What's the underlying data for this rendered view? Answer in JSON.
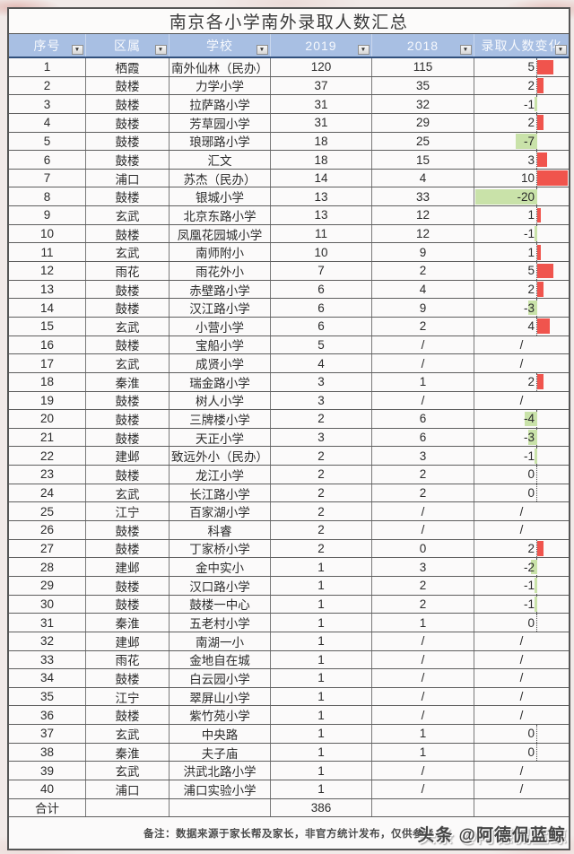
{
  "page": {
    "title": "南京各小学南外录取人数汇总",
    "note": "备注：数据来源于家长帮及家长，非官方统计发布，仅供参考",
    "watermark": "头条 @阿德侃蓝鲸"
  },
  "icons": {
    "filter_dropdown": "▼"
  },
  "colors": {
    "header_bg": "#a8bfe3",
    "header_text": "#f7f9fd",
    "positive_bar": "#f0544d",
    "negative_fill": "#c9e2a9"
  },
  "table": {
    "columns": [
      {
        "key": "no",
        "label": "序号"
      },
      {
        "key": "district",
        "label": "区属"
      },
      {
        "key": "school",
        "label": "学校"
      },
      {
        "key": "y2019",
        "label": "2019"
      },
      {
        "key": "y2018",
        "label": "2018"
      },
      {
        "key": "change",
        "label": "录取人数变化"
      }
    ],
    "rows": [
      {
        "no": "1",
        "district": "栖霞",
        "school": "南外仙林（民办）",
        "y2019": "120",
        "y2018": "115",
        "change": "5"
      },
      {
        "no": "2",
        "district": "鼓楼",
        "school": "力学小学",
        "y2019": "37",
        "y2018": "35",
        "change": "2"
      },
      {
        "no": "3",
        "district": "鼓楼",
        "school": "拉萨路小学",
        "y2019": "31",
        "y2018": "32",
        "change": "-1"
      },
      {
        "no": "4",
        "district": "鼓楼",
        "school": "芳草园小学",
        "y2019": "31",
        "y2018": "29",
        "change": "2"
      },
      {
        "no": "5",
        "district": "鼓楼",
        "school": "琅琊路小学",
        "y2019": "18",
        "y2018": "25",
        "change": "-7"
      },
      {
        "no": "6",
        "district": "鼓楼",
        "school": "汇文",
        "y2019": "18",
        "y2018": "15",
        "change": "3"
      },
      {
        "no": "7",
        "district": "浦口",
        "school": "苏杰（民办）",
        "y2019": "14",
        "y2018": "4",
        "change": "10"
      },
      {
        "no": "8",
        "district": "鼓楼",
        "school": "银城小学",
        "y2019": "13",
        "y2018": "33",
        "change": "-20"
      },
      {
        "no": "9",
        "district": "玄武",
        "school": "北京东路小学",
        "y2019": "13",
        "y2018": "12",
        "change": "1"
      },
      {
        "no": "10",
        "district": "鼓楼",
        "school": "凤凰花园城小学",
        "y2019": "11",
        "y2018": "12",
        "change": "-1"
      },
      {
        "no": "11",
        "district": "玄武",
        "school": "南师附小",
        "y2019": "10",
        "y2018": "9",
        "change": "1"
      },
      {
        "no": "12",
        "district": "雨花",
        "school": "雨花外小",
        "y2019": "7",
        "y2018": "2",
        "change": "5"
      },
      {
        "no": "13",
        "district": "鼓楼",
        "school": "赤壁路小学",
        "y2019": "6",
        "y2018": "4",
        "change": "2"
      },
      {
        "no": "14",
        "district": "鼓楼",
        "school": "汉江路小学",
        "y2019": "6",
        "y2018": "9",
        "change": "-3"
      },
      {
        "no": "15",
        "district": "玄武",
        "school": "小营小学",
        "y2019": "6",
        "y2018": "2",
        "change": "4"
      },
      {
        "no": "16",
        "district": "鼓楼",
        "school": "宝船小学",
        "y2019": "5",
        "y2018": "/",
        "change": "/"
      },
      {
        "no": "17",
        "district": "玄武",
        "school": "成贤小学",
        "y2019": "4",
        "y2018": "/",
        "change": "/"
      },
      {
        "no": "18",
        "district": "秦淮",
        "school": "瑞金路小学",
        "y2019": "3",
        "y2018": "1",
        "change": "2"
      },
      {
        "no": "19",
        "district": "鼓楼",
        "school": "树人小学",
        "y2019": "3",
        "y2018": "/",
        "change": "/"
      },
      {
        "no": "20",
        "district": "鼓楼",
        "school": "三牌楼小学",
        "y2019": "2",
        "y2018": "6",
        "change": "-4"
      },
      {
        "no": "21",
        "district": "鼓楼",
        "school": "天正小学",
        "y2019": "3",
        "y2018": "6",
        "change": "-3"
      },
      {
        "no": "22",
        "district": "建邺",
        "school": "致远外小（民办）",
        "y2019": "2",
        "y2018": "3",
        "change": "-1"
      },
      {
        "no": "23",
        "district": "鼓楼",
        "school": "龙江小学",
        "y2019": "2",
        "y2018": "2",
        "change": "0"
      },
      {
        "no": "24",
        "district": "玄武",
        "school": "长江路小学",
        "y2019": "2",
        "y2018": "2",
        "change": "0"
      },
      {
        "no": "25",
        "district": "江宁",
        "school": "百家湖小学",
        "y2019": "2",
        "y2018": "/",
        "change": "/"
      },
      {
        "no": "26",
        "district": "鼓楼",
        "school": "科睿",
        "y2019": "2",
        "y2018": "/",
        "change": "/"
      },
      {
        "no": "27",
        "district": "鼓楼",
        "school": "丁家桥小学",
        "y2019": "2",
        "y2018": "0",
        "change": "2"
      },
      {
        "no": "28",
        "district": "建邺",
        "school": "金中实小",
        "y2019": "1",
        "y2018": "3",
        "change": "-2"
      },
      {
        "no": "29",
        "district": "鼓楼",
        "school": "汉口路小学",
        "y2019": "1",
        "y2018": "2",
        "change": "-1"
      },
      {
        "no": "30",
        "district": "鼓楼",
        "school": "鼓楼一中心",
        "y2019": "1",
        "y2018": "2",
        "change": "-1"
      },
      {
        "no": "31",
        "district": "秦淮",
        "school": "五老村小学",
        "y2019": "1",
        "y2018": "1",
        "change": "0"
      },
      {
        "no": "32",
        "district": "建邺",
        "school": "南湖一小",
        "y2019": "1",
        "y2018": "/",
        "change": "/"
      },
      {
        "no": "33",
        "district": "雨花",
        "school": "金地自在城",
        "y2019": "1",
        "y2018": "/",
        "change": "/"
      },
      {
        "no": "34",
        "district": "鼓楼",
        "school": "白云园小学",
        "y2019": "1",
        "y2018": "/",
        "change": "/"
      },
      {
        "no": "35",
        "district": "江宁",
        "school": "翠屏山小学",
        "y2019": "1",
        "y2018": "/",
        "change": "/"
      },
      {
        "no": "36",
        "district": "鼓楼",
        "school": "紫竹苑小学",
        "y2019": "1",
        "y2018": "/",
        "change": "/"
      },
      {
        "no": "37",
        "district": "玄武",
        "school": "中央路",
        "y2019": "1",
        "y2018": "1",
        "change": "0"
      },
      {
        "no": "38",
        "district": "秦淮",
        "school": "夫子庙",
        "y2019": "1",
        "y2018": "1",
        "change": "0"
      },
      {
        "no": "39",
        "district": "玄武",
        "school": "洪武北路小学",
        "y2019": "1",
        "y2018": "/",
        "change": "/"
      },
      {
        "no": "40",
        "district": "浦口",
        "school": "浦口实验小学",
        "y2019": "1",
        "y2018": "/",
        "change": "/"
      }
    ],
    "total": {
      "label": "合计",
      "y2019": "386"
    }
  }
}
